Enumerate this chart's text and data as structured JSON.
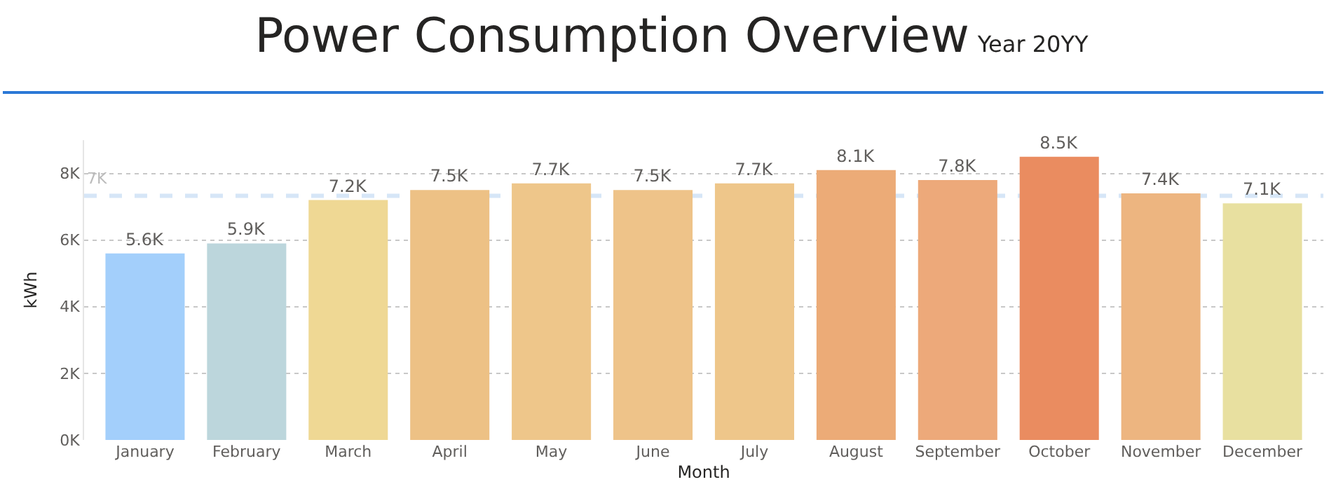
{
  "chart_data": {
    "type": "bar",
    "title": "Power Consumption Overview",
    "subtitle": "Year 20YY",
    "xlabel": "Month",
    "ylabel": "kWh",
    "categories": [
      "January",
      "February",
      "March",
      "April",
      "May",
      "June",
      "July",
      "August",
      "September",
      "October",
      "November",
      "December"
    ],
    "values": [
      5600,
      5900,
      7200,
      7500,
      7700,
      7500,
      7700,
      8100,
      7800,
      8500,
      7400,
      7100
    ],
    "colors": [
      "#a3cffb",
      "#bcd6dc",
      "#efd894",
      "#edc185",
      "#eec68a",
      "#eec389",
      "#eec68a",
      "#ecab77",
      "#eda97a",
      "#ea8c60",
      "#edb580",
      "#e8e0a0"
    ],
    "value_labels": [
      "5.6K",
      "5.9K",
      "7.2K",
      "7.5K",
      "7.7K",
      "7.5K",
      "7.7K",
      "8.1K",
      "7.8K",
      "8.5K",
      "7.4K",
      "7.1K"
    ],
    "ylim": [
      0,
      9000
    ],
    "yticks": [
      {
        "value": 0,
        "label": "0K"
      },
      {
        "value": 2000,
        "label": "2K"
      },
      {
        "value": 4000,
        "label": "4K"
      },
      {
        "value": 6000,
        "label": "6K"
      },
      {
        "value": 8000,
        "label": "8K"
      }
    ],
    "grid": "y",
    "legend": false,
    "ref_lines": [
      {
        "axis": "y",
        "value": 7330,
        "label": "7K",
        "color": "#d6e6f7",
        "line_style": "dashed"
      }
    ]
  }
}
